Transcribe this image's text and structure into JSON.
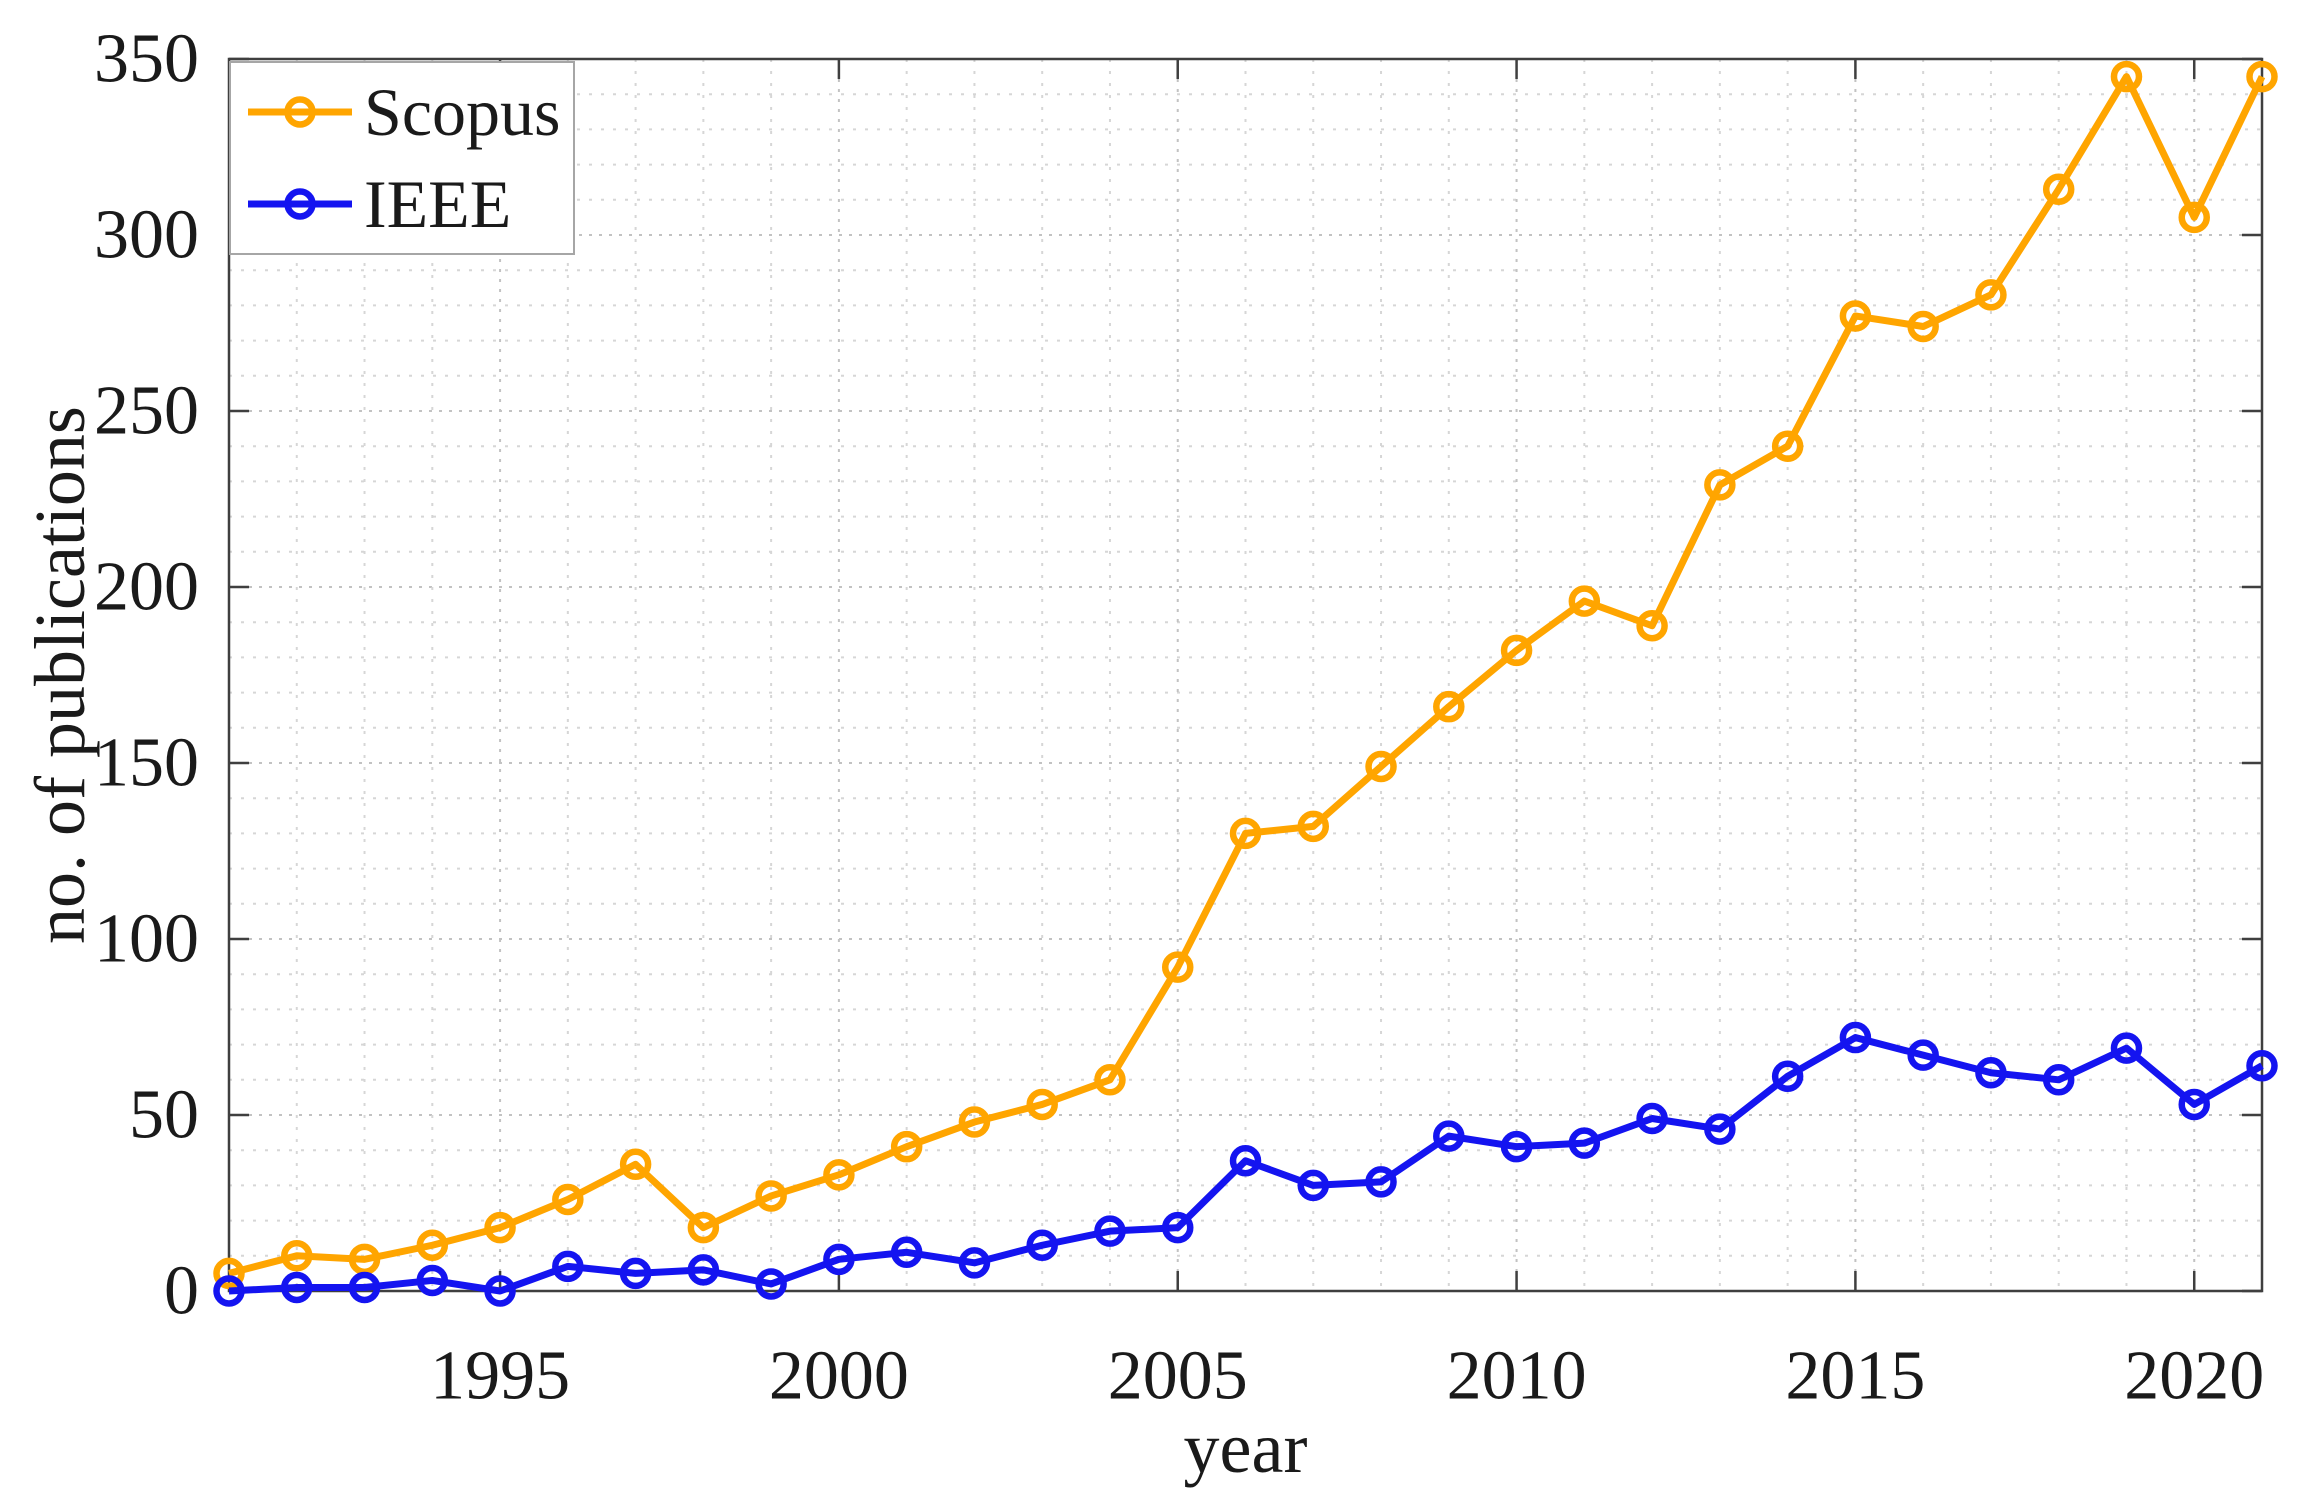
{
  "chart_data": {
    "type": "line",
    "title": "",
    "xlabel": "year",
    "ylabel": "no. of publications",
    "xlim": [
      1991,
      2021
    ],
    "ylim": [
      0,
      350
    ],
    "x_ticks": [
      1995,
      2000,
      2005,
      2010,
      2015,
      2020
    ],
    "y_ticks": [
      0,
      50,
      100,
      150,
      200,
      250,
      300,
      350
    ],
    "x_minor_step": 1,
    "y_minor_step": 10,
    "grid": "dotted-minor-and-major",
    "legend_position": "top-left",
    "axis_color": "#3f3f3f",
    "x": [
      1991,
      1992,
      1993,
      1994,
      1995,
      1996,
      1997,
      1998,
      1999,
      2000,
      2001,
      2002,
      2003,
      2004,
      2005,
      2006,
      2007,
      2008,
      2009,
      2010,
      2011,
      2012,
      2013,
      2014,
      2015,
      2016,
      2017,
      2018,
      2019,
      2020,
      2021
    ],
    "series": [
      {
        "name": "Scopus",
        "color": "#FFA500",
        "marker": "open-circle",
        "values": [
          5,
          10,
          9,
          13,
          18,
          26,
          36,
          18,
          27,
          33,
          41,
          48,
          53,
          60,
          92,
          130,
          132,
          149,
          166,
          182,
          196,
          189,
          229,
          240,
          277,
          274,
          283,
          313,
          345,
          305,
          345
        ]
      },
      {
        "name": "IEEE",
        "color": "#1414F0",
        "marker": "open-circle",
        "values": [
          0,
          1,
          1,
          3,
          0,
          7,
          5,
          6,
          2,
          9,
          11,
          8,
          13,
          17,
          18,
          37,
          30,
          31,
          44,
          41,
          42,
          49,
          46,
          61,
          72,
          67,
          62,
          60,
          69,
          53,
          64
        ]
      }
    ]
  }
}
